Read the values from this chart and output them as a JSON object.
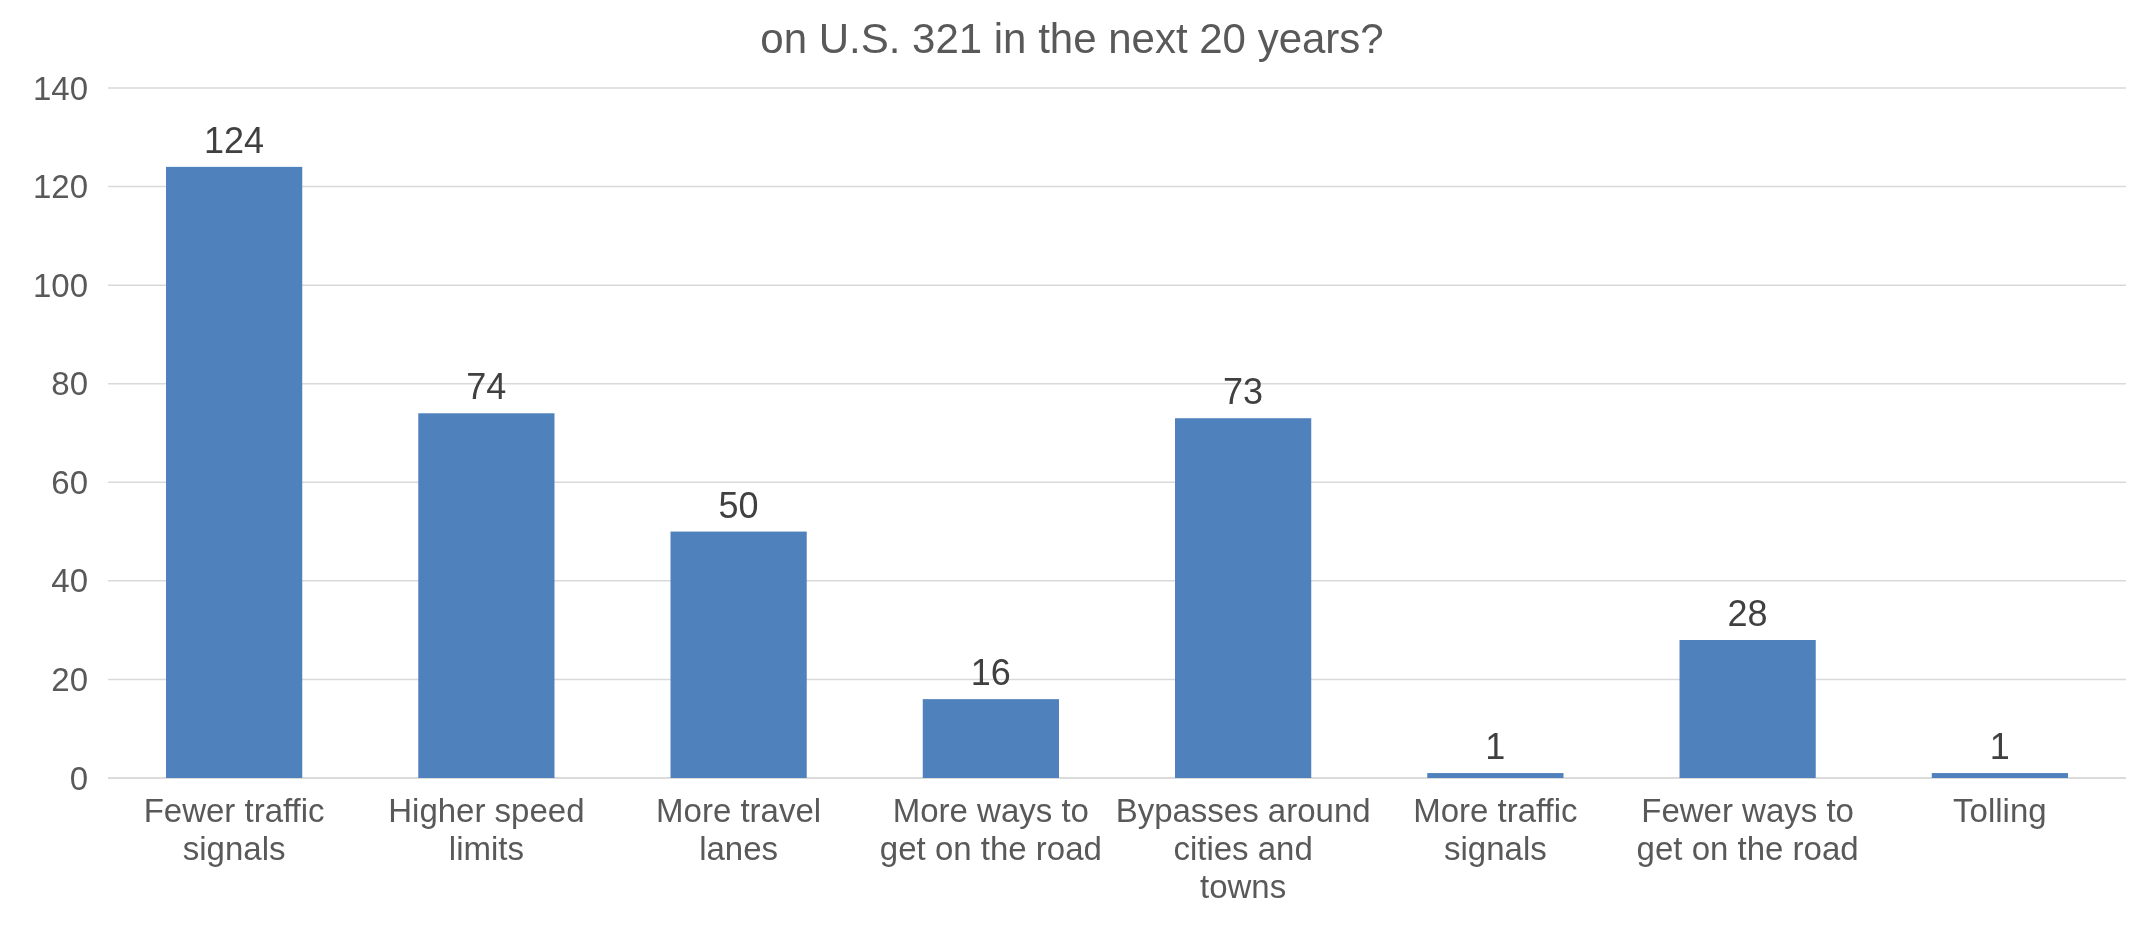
{
  "chart_data": {
    "type": "bar",
    "title": "on U.S. 321 in the next 20 years?",
    "categories": [
      "Fewer traffic signals",
      "Higher speed limits",
      "More travel lanes",
      "More ways to get on the road",
      "Bypasses around cities and towns",
      "More traffic signals",
      "Fewer ways to get on the road",
      "Tolling"
    ],
    "values": [
      124,
      74,
      50,
      16,
      73,
      1,
      28,
      1
    ],
    "color": "#4f81bd",
    "ylim": [
      0,
      140
    ],
    "yticks": [
      0,
      20,
      40,
      60,
      80,
      100,
      120,
      140
    ],
    "grid": "y",
    "data_labels": true
  }
}
